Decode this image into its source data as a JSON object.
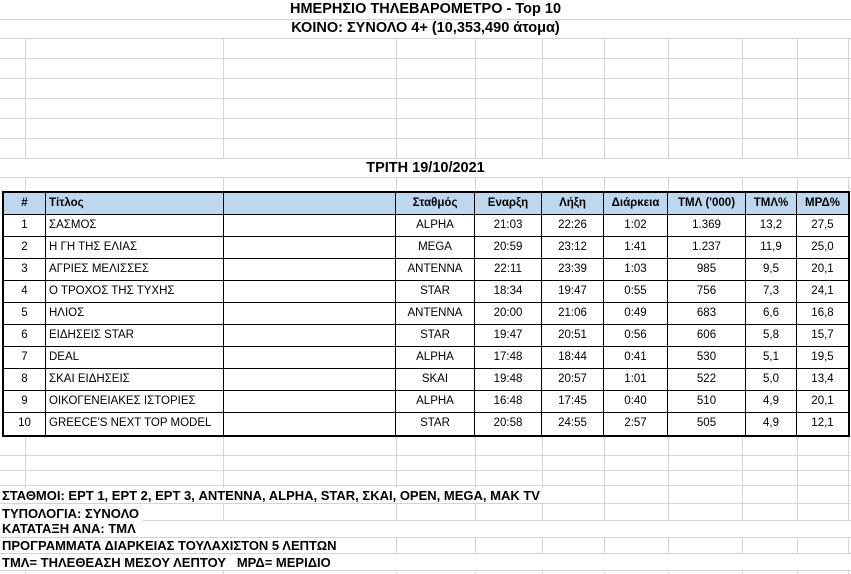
{
  "sheet": {
    "title": "ΗΜΕΡΗΣΙΟ ΤΗΛΕΒΑΡΟΜΕΤΡΟ - Top 10",
    "subtitle": "ΚΟΙΝΟ: ΣΥΝΟΛΟ 4+ (10,353,490 άτομα)",
    "date_header": "ΤΡΙΤΗ 19/10/2021"
  },
  "table": {
    "columns": [
      "#",
      "Τίτλος",
      "",
      "Σταθμός",
      "Εναρξη",
      "Λήξη",
      "Διάρκεια",
      "ΤΜΛ ('000)",
      "ΤΜΛ%",
      "ΜΡΔ%"
    ],
    "rows": [
      {
        "rank": "1",
        "title": "ΣΑΣΜΟΣ",
        "channel": "ALPHA",
        "start": "21:03",
        "end": "22:26",
        "duration": "1:02",
        "tml": "1.369",
        "tml_pct": "13,2",
        "mrd_pct": "27,5"
      },
      {
        "rank": "2",
        "title": "Η ΓΗ ΤΗΣ ΕΛΙΑΣ",
        "channel": "MEGA",
        "start": "20:59",
        "end": "23:12",
        "duration": "1:41",
        "tml": "1.237",
        "tml_pct": "11,9",
        "mrd_pct": "25,0"
      },
      {
        "rank": "3",
        "title": "ΑΓΡΙΕΣ ΜΕΛΙΣΣΕΣ",
        "channel": "ANTENNA",
        "start": "22:11",
        "end": "23:39",
        "duration": "1:03",
        "tml": "985",
        "tml_pct": "9,5",
        "mrd_pct": "20,1"
      },
      {
        "rank": "4",
        "title": "Ο ΤΡΟΧΟΣ ΤΗΣ ΤΥΧΗΣ",
        "channel": "STAR",
        "start": "18:34",
        "end": "19:47",
        "duration": "0:55",
        "tml": "756",
        "tml_pct": "7,3",
        "mrd_pct": "24,1"
      },
      {
        "rank": "5",
        "title": "ΗΛΙΟΣ",
        "channel": "ANTENNA",
        "start": "20:00",
        "end": "21:06",
        "duration": "0:49",
        "tml": "683",
        "tml_pct": "6,6",
        "mrd_pct": "16,8"
      },
      {
        "rank": "6",
        "title": "ΕΙΔΗΣΕΙΣ STAR",
        "channel": "STAR",
        "start": "19:47",
        "end": "20:51",
        "duration": "0:56",
        "tml": "606",
        "tml_pct": "5,8",
        "mrd_pct": "15,7"
      },
      {
        "rank": "7",
        "title": "DEAL",
        "channel": "ALPHA",
        "start": "17:48",
        "end": "18:44",
        "duration": "0:41",
        "tml": "530",
        "tml_pct": "5,1",
        "mrd_pct": "19,5"
      },
      {
        "rank": "8",
        "title": "ΣΚΑΙ ΕΙΔΗΣΕΙΣ",
        "channel": "SKAI",
        "start": "19:48",
        "end": "20:57",
        "duration": "1:01",
        "tml": "522",
        "tml_pct": "5,0",
        "mrd_pct": "13,4"
      },
      {
        "rank": "9",
        "title": "ΟΙΚΟΓΕΝΕΙΑΚΕΣ ΙΣΤΟΡΙΕΣ",
        "channel": "ALPHA",
        "start": "16:48",
        "end": "17:45",
        "duration": "0:40",
        "tml": "510",
        "tml_pct": "4,9",
        "mrd_pct": "20,1"
      },
      {
        "rank": "10",
        "title": "GREECE'S NEXT TOP MODEL",
        "channel": "STAR",
        "start": "20:58",
        "end": "24:55",
        "duration": "2:57",
        "tml": "505",
        "tml_pct": "4,9",
        "mrd_pct": "12,1"
      }
    ]
  },
  "footer": {
    "lines": [
      "ΣΤΑΘΜΟΙ: ΕΡΤ 1, ΕΡΤ 2, ΕΡΤ 3, ANTENNA, ALPHA, STAR, ΣΚΑΙ, OPEN, MEGA, MAK TV",
      "ΤΥΠΟΛΟΓΙΑ: ΣΥΝΟΛΟ",
      "ΚΑΤΑΤΑΞΗ ΑΝΑ: ΤΜΛ",
      "ΠΡΟΓΡΑΜΜΑΤΑ ΔΙΑΡΚΕΙΑΣ ΤΟΥΛΑΧΙΣΤΟΝ 5 ΛΕΠΤΩΝ",
      "ΤΜΛ= ΤΗΛΕΘΕΑΣΗ ΜΕΣΟΥ ΛΕΠΤΟΥ   ΜΡΔ= ΜΕΡΙΔΙΟ"
    ]
  },
  "colors": {
    "header_fill": "#BDD7EE",
    "gridline": "#D4D4D4",
    "table_border": "#000000"
  }
}
